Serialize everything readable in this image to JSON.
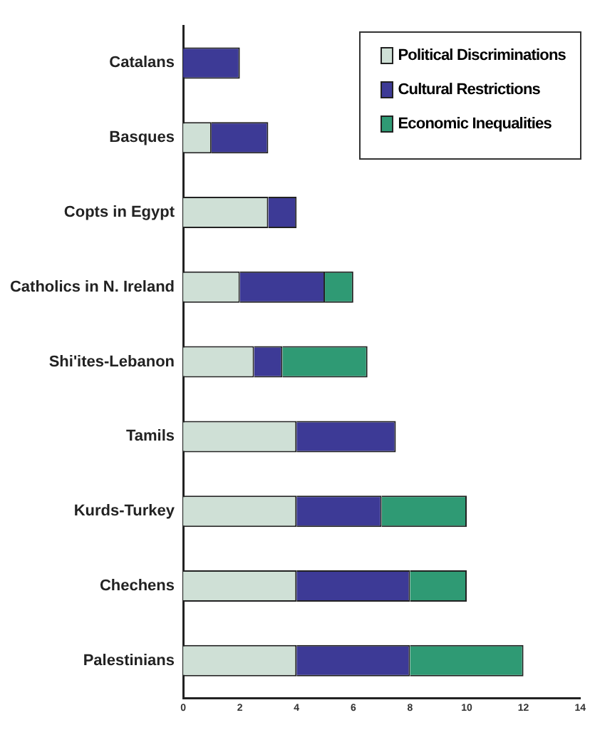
{
  "chart_data": {
    "type": "bar",
    "orientation": "horizontal",
    "stacked": true,
    "categories": [
      "Catalans",
      "Basques",
      "Copts in Egypt",
      "Catholics in N. Ireland",
      "Shi'ites-Lebanon",
      "Tamils",
      "Kurds-Turkey",
      "Chechens",
      "Palestinians"
    ],
    "series": [
      {
        "name": "Political Discriminations",
        "color": "#cfe0d6",
        "values": [
          0,
          1,
          3,
          2,
          2.5,
          4,
          4,
          4,
          4
        ]
      },
      {
        "name": "Cultural Restrictions",
        "color": "#3d3a96",
        "values": [
          2,
          2,
          1,
          3,
          1,
          3.5,
          3,
          4,
          4
        ]
      },
      {
        "name": "Economic Inequalities",
        "color": "#2f9a74",
        "values": [
          0,
          0,
          0,
          1,
          3,
          0,
          3,
          2,
          4
        ]
      }
    ],
    "xlim": [
      0,
      14
    ],
    "xticks": [
      0,
      2,
      4,
      6,
      8,
      10,
      12,
      14
    ],
    "grid": false,
    "legend": "top right"
  }
}
